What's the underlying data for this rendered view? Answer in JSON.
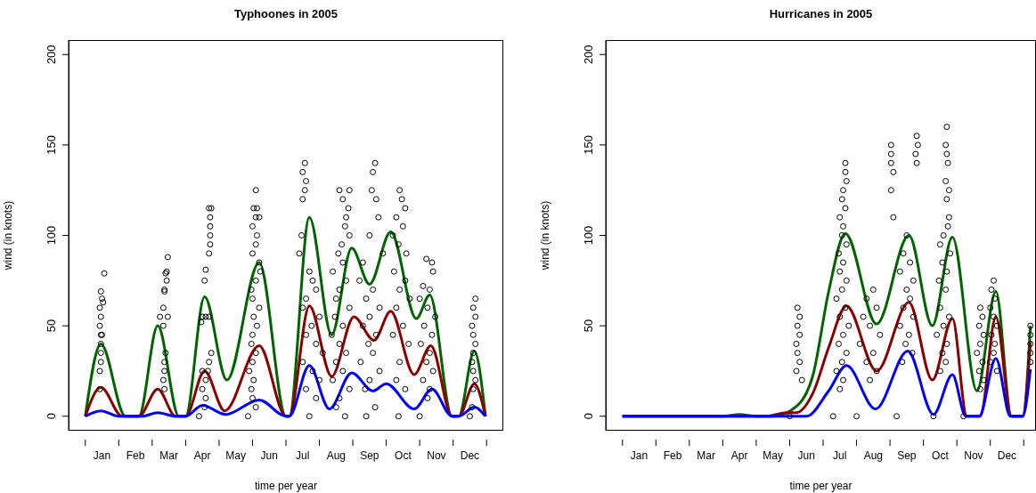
{
  "chart_data": [
    {
      "type": "scatter",
      "title": "Typhoones in 2005",
      "xlabel": "time per year",
      "ylabel": "wind (in knots)",
      "xlim": [
        "2004-12-16",
        "2006-01-16"
      ],
      "ylim": [
        -8,
        208
      ],
      "yticks": [
        0,
        50,
        100,
        150,
        200
      ],
      "xticks": [
        {
          "value": "2005-01-01",
          "label": null
        },
        {
          "value": "2005-01-16",
          "label": "Jan"
        },
        {
          "value": "2005-02-01",
          "label": null
        },
        {
          "value": "2005-02-16",
          "label": "Feb"
        },
        {
          "value": "2005-03-01",
          "label": null
        },
        {
          "value": "2005-03-16",
          "label": "Mar"
        },
        {
          "value": "2005-04-01",
          "label": null
        },
        {
          "value": "2005-04-16",
          "label": "Apr"
        },
        {
          "value": "2005-05-01",
          "label": null
        },
        {
          "value": "2005-05-16",
          "label": "May"
        },
        {
          "value": "2005-06-01",
          "label": null
        },
        {
          "value": "2005-06-16",
          "label": "Jun"
        },
        {
          "value": "2005-07-01",
          "label": null
        },
        {
          "value": "2005-07-16",
          "label": "Jul"
        },
        {
          "value": "2005-08-01",
          "label": null
        },
        {
          "value": "2005-08-16",
          "label": "Aug"
        },
        {
          "value": "2005-09-01",
          "label": null
        },
        {
          "value": "2005-09-16",
          "label": "Sep"
        },
        {
          "value": "2005-10-01",
          "label": null
        },
        {
          "value": "2005-10-16",
          "label": "Oct"
        },
        {
          "value": "2005-11-01",
          "label": null
        },
        {
          "value": "2005-11-16",
          "label": "Nov"
        },
        {
          "value": "2005-12-01",
          "label": null
        },
        {
          "value": "2005-12-16",
          "label": "Dec"
        },
        {
          "value": "2006-01-01",
          "label": null
        }
      ],
      "series": [
        {
          "marker": "circle",
          "color": "#000000",
          "x": [
            "2005-01-18",
            "2005-01-15",
            "2005-01-16",
            "2005-01-17",
            "2005-01-14",
            "2005-01-15",
            "2005-01-14",
            "2005-01-15",
            "2005-01-16",
            "2005-01-15",
            "2005-01-15",
            "2005-01-15",
            "2005-01-14",
            "2005-01-14",
            "2005-03-15",
            "2005-03-14",
            "2005-03-13",
            "2005-03-14",
            "2005-03-12",
            "2005-03-12",
            "2005-03-11",
            "2005-03-08",
            "2005-03-15",
            "2005-03-11",
            "2005-03-13",
            "2005-03-12",
            "2005-03-12",
            "2005-03-11",
            "2005-03-12",
            "2005-04-22",
            "2005-04-24",
            "2005-04-23",
            "2005-04-23",
            "2005-04-23",
            "2005-04-23",
            "2005-04-22",
            "2005-04-19",
            "2005-04-18",
            "2005-04-16",
            "2005-04-19",
            "2005-04-22",
            "2005-04-15",
            "2005-04-24",
            "2005-04-22",
            "2005-04-21",
            "2005-04-16",
            "2005-04-19",
            "2005-04-16",
            "2005-04-19",
            "2005-04-18",
            "2005-04-13",
            "2005-06-04",
            "2005-06-02",
            "2005-06-05",
            "2005-06-04",
            "2005-06-07",
            "2005-06-01",
            "2005-06-05",
            "2005-06-04",
            "2005-06-01",
            "2005-06-07",
            "2005-06-08",
            "2005-06-04",
            "2005-05-30",
            "2005-06-01",
            "2005-06-07",
            "2005-06-02",
            "2005-06-05",
            "2005-06-01",
            "2005-05-30",
            "2005-06-04",
            "2005-06-01",
            "2005-05-28",
            "2005-06-02",
            "2005-05-30",
            "2005-06-01",
            "2005-06-04",
            "2005-05-27",
            "2005-07-18",
            "2005-07-16",
            "2005-07-19",
            "2005-07-18",
            "2005-07-16",
            "2005-07-15",
            "2005-07-13",
            "2005-07-22",
            "2005-07-25",
            "2005-07-28",
            "2005-07-19",
            "2005-07-16",
            "2005-08-01",
            "2005-07-24",
            "2005-07-19",
            "2005-07-28",
            "2005-08-04",
            "2005-07-16",
            "2005-07-25",
            "2005-08-01",
            "2005-07-19",
            "2005-07-28",
            "2005-07-22",
            "2005-08-19",
            "2005-08-28",
            "2005-08-22",
            "2005-08-27",
            "2005-08-25",
            "2005-08-24",
            "2005-08-28",
            "2005-08-21",
            "2005-08-18",
            "2005-08-22",
            "2005-08-13",
            "2005-08-25",
            "2005-08-19",
            "2005-08-16",
            "2005-08-28",
            "2005-08-15",
            "2005-08-22",
            "2005-08-12",
            "2005-08-19",
            "2005-08-25",
            "2005-08-16",
            "2005-08-22",
            "2005-08-13",
            "2005-08-28",
            "2005-08-19",
            "2005-08-16",
            "2005-08-24",
            "2005-09-21",
            "2005-09-19",
            "2005-09-18",
            "2005-09-22",
            "2005-09-24",
            "2005-09-16",
            "2005-09-28",
            "2005-09-10",
            "2005-09-07",
            "2005-09-19",
            "2005-09-13",
            "2005-09-25",
            "2005-09-16",
            "2005-09-10",
            "2005-09-22",
            "2005-09-15",
            "2005-09-19",
            "2005-09-08",
            "2005-09-25",
            "2005-09-16",
            "2005-09-12",
            "2005-09-21",
            "2005-09-13",
            "2005-10-13",
            "2005-10-15",
            "2005-10-18",
            "2005-10-10",
            "2005-10-16",
            "2005-10-07",
            "2005-10-12",
            "2005-10-19",
            "2005-10-08",
            "2005-10-18",
            "2005-10-13",
            "2005-10-22",
            "2005-10-10",
            "2005-10-16",
            "2005-10-07",
            "2005-10-21",
            "2005-10-13",
            "2005-10-10",
            "2005-10-18",
            "2005-10-12",
            "2005-11-07",
            "2005-11-12",
            "2005-11-13",
            "2005-11-04",
            "2005-11-10",
            "2005-11-01",
            "2005-11-08",
            "2005-11-15",
            "2005-11-05",
            "2005-11-12",
            "2005-11-02",
            "2005-11-10",
            "2005-11-07",
            "2005-11-13",
            "2005-11-04",
            "2005-11-10",
            "2005-11-08",
            "2005-11-01",
            "2005-12-21",
            "2005-12-19",
            "2005-12-21",
            "2005-12-18",
            "2005-12-19",
            "2005-12-21",
            "2005-12-19",
            "2005-12-18",
            "2005-12-19",
            "2005-12-21",
            "2005-12-19",
            "2005-12-18",
            "2005-12-16"
          ],
          "values": [
            79,
            69,
            65,
            63,
            60,
            55,
            50,
            45,
            45,
            40,
            35,
            30,
            25,
            15,
            88,
            80,
            79,
            75,
            70,
            69,
            60,
            55,
            55,
            50,
            35,
            30,
            25,
            20,
            15,
            115,
            115,
            110,
            105,
            100,
            95,
            90,
            81,
            75,
            55,
            55,
            55,
            52,
            35,
            30,
            25,
            25,
            20,
            15,
            10,
            5,
            0,
            125,
            115,
            115,
            110,
            110,
            105,
            100,
            95,
            90,
            85,
            80,
            75,
            70,
            65,
            60,
            55,
            50,
            45,
            40,
            35,
            30,
            25,
            20,
            15,
            10,
            5,
            0,
            140,
            135,
            130,
            125,
            120,
            100,
            90,
            80,
            75,
            70,
            65,
            60,
            55,
            50,
            45,
            40,
            35,
            30,
            25,
            20,
            15,
            10,
            0,
            125,
            125,
            120,
            115,
            110,
            105,
            100,
            95,
            90,
            85,
            80,
            75,
            70,
            65,
            60,
            55,
            50,
            45,
            40,
            35,
            30,
            25,
            20,
            15,
            10,
            5,
            0,
            140,
            135,
            125,
            120,
            110,
            100,
            90,
            85,
            75,
            70,
            65,
            60,
            55,
            50,
            45,
            40,
            35,
            30,
            25,
            20,
            15,
            5,
            0,
            125,
            120,
            115,
            110,
            105,
            100,
            95,
            90,
            80,
            75,
            70,
            65,
            60,
            50,
            45,
            40,
            30,
            20,
            15,
            0,
            87,
            85,
            80,
            72,
            70,
            65,
            60,
            55,
            50,
            45,
            40,
            35,
            30,
            25,
            20,
            15,
            10,
            0,
            65,
            60,
            55,
            50,
            45,
            40,
            35,
            30,
            25,
            20,
            15,
            5,
            0
          ]
        },
        {
          "type": "line",
          "marker": "none",
          "color": "#006400",
          "x": [
            "2005-01-01",
            "2005-01-15",
            "2005-02-07",
            "2005-02-19",
            "2005-03-06",
            "2005-03-25",
            "2005-04-01",
            "2005-04-18",
            "2005-05-08",
            "2005-06-07",
            "2005-07-01",
            "2005-07-04",
            "2005-07-22",
            "2005-08-12",
            "2005-08-30",
            "2005-09-16",
            "2005-10-05",
            "2005-10-28",
            "2005-11-10",
            "2005-11-30",
            "2005-12-06",
            "2005-12-20",
            "2005-12-30"
          ],
          "values": [
            0,
            40,
            0,
            0,
            50,
            0,
            0,
            66,
            20,
            85,
            0,
            0,
            110,
            45,
            93,
            73,
            102,
            54,
            67,
            0,
            0,
            36,
            0
          ]
        },
        {
          "type": "line",
          "marker": "none",
          "color": "#8b0000",
          "x": [
            "2005-01-01",
            "2005-01-15",
            "2005-02-04",
            "2005-02-19",
            "2005-03-06",
            "2005-03-22",
            "2005-04-01",
            "2005-04-18",
            "2005-05-06",
            "2005-06-07",
            "2005-07-01",
            "2005-07-04",
            "2005-07-22",
            "2005-08-12",
            "2005-09-02",
            "2005-09-20",
            "2005-10-05",
            "2005-10-26",
            "2005-11-11",
            "2005-11-30",
            "2005-12-06",
            "2005-12-20",
            "2005-12-30"
          ],
          "values": [
            0,
            16,
            0,
            0,
            15,
            0,
            0,
            25,
            3,
            39,
            0,
            0,
            61,
            22,
            55,
            42,
            58,
            23,
            39,
            0,
            0,
            18,
            0
          ]
        },
        {
          "type": "line",
          "marker": "none",
          "color": "#0000ff",
          "x": [
            "2005-01-01",
            "2005-01-15",
            "2005-02-01",
            "2005-02-22",
            "2005-03-06",
            "2005-03-22",
            "2005-04-01",
            "2005-04-16",
            "2005-05-07",
            "2005-06-07",
            "2005-07-01",
            "2005-07-04",
            "2005-07-22",
            "2005-08-10",
            "2005-08-30",
            "2005-09-19",
            "2005-10-01",
            "2005-10-26",
            "2005-11-12",
            "2005-11-30",
            "2005-12-06",
            "2005-12-20",
            "2005-12-30"
          ],
          "values": [
            0,
            3,
            0,
            0,
            2,
            0,
            0,
            6,
            1,
            9,
            0,
            0,
            28,
            4,
            24,
            14,
            18,
            4,
            15,
            0,
            0,
            5,
            0
          ]
        }
      ]
    },
    {
      "type": "scatter",
      "title": "Hurricanes in 2005",
      "xlabel": "time per year",
      "ylabel": "wind (in knots)",
      "xlim": [
        "2004-12-16",
        "2006-01-12"
      ],
      "ylim": [
        -8,
        208
      ],
      "yticks": [
        0,
        50,
        100,
        150,
        200
      ],
      "xticks": [
        {
          "value": "2005-01-01",
          "label": null
        },
        {
          "value": "2005-01-16",
          "label": "Jan"
        },
        {
          "value": "2005-02-01",
          "label": null
        },
        {
          "value": "2005-02-16",
          "label": "Feb"
        },
        {
          "value": "2005-03-01",
          "label": null
        },
        {
          "value": "2005-03-16",
          "label": "Mar"
        },
        {
          "value": "2005-04-01",
          "label": null
        },
        {
          "value": "2005-04-16",
          "label": "Apr"
        },
        {
          "value": "2005-05-01",
          "label": null
        },
        {
          "value": "2005-05-16",
          "label": "May"
        },
        {
          "value": "2005-06-01",
          "label": null
        },
        {
          "value": "2005-06-16",
          "label": "Jun"
        },
        {
          "value": "2005-07-01",
          "label": null
        },
        {
          "value": "2005-07-16",
          "label": "Jul"
        },
        {
          "value": "2005-08-01",
          "label": null
        },
        {
          "value": "2005-08-16",
          "label": "Aug"
        },
        {
          "value": "2005-09-01",
          "label": null
        },
        {
          "value": "2005-09-16",
          "label": "Sep"
        },
        {
          "value": "2005-10-01",
          "label": null
        },
        {
          "value": "2005-10-16",
          "label": "Oct"
        },
        {
          "value": "2005-11-01",
          "label": null
        },
        {
          "value": "2005-11-16",
          "label": "Nov"
        },
        {
          "value": "2005-12-01",
          "label": null
        },
        {
          "value": "2005-12-16",
          "label": "Dec"
        },
        {
          "value": "2006-01-01",
          "label": null
        }
      ],
      "series": [
        {
          "marker": "circle",
          "color": "#000000",
          "x": [
            "2005-06-08",
            "2005-06-10",
            "2005-06-08",
            "2005-06-10",
            "2005-06-07",
            "2005-06-08",
            "2005-06-10",
            "2005-06-07",
            "2005-06-12",
            "2005-06-01",
            "2005-07-21",
            "2005-07-21",
            "2005-07-22",
            "2005-07-19",
            "2005-07-18",
            "2005-07-21",
            "2005-07-16",
            "2005-07-19",
            "2005-07-18",
            "2005-07-22",
            "2005-07-15",
            "2005-07-19",
            "2005-07-16",
            "2005-07-22",
            "2005-07-18",
            "2005-07-13",
            "2005-07-21",
            "2005-07-16",
            "2005-07-24",
            "2005-07-19",
            "2005-07-15",
            "2005-07-22",
            "2005-07-18",
            "2005-07-13",
            "2005-07-19",
            "2005-07-16",
            "2005-07-10",
            "2005-08-16",
            "2005-08-10",
            "2005-08-19",
            "2005-08-07",
            "2005-08-13",
            "2005-08-22",
            "2005-08-04",
            "2005-08-16",
            "2005-08-10",
            "2005-08-19",
            "2005-08-13",
            "2005-08-01",
            "2005-09-25",
            "2005-09-26",
            "2005-09-24",
            "2005-09-25",
            "2005-09-02",
            "2005-09-02",
            "2005-09-02",
            "2005-09-04",
            "2005-09-02",
            "2005-09-04",
            "2005-09-16",
            "2005-09-13",
            "2005-09-19",
            "2005-09-10",
            "2005-09-22",
            "2005-09-16",
            "2005-09-19",
            "2005-09-13",
            "2005-09-22",
            "2005-09-10",
            "2005-09-18",
            "2005-09-15",
            "2005-09-21",
            "2005-09-12",
            "2005-09-07",
            "2005-10-22",
            "2005-10-21",
            "2005-10-22",
            "2005-10-23",
            "2005-10-21",
            "2005-10-24",
            "2005-10-22",
            "2005-10-24",
            "2005-10-23",
            "2005-10-19",
            "2005-10-16",
            "2005-10-25",
            "2005-10-18",
            "2005-10-22",
            "2005-10-15",
            "2005-10-21",
            "2005-10-16",
            "2005-10-24",
            "2005-10-19",
            "2005-10-13",
            "2005-10-22",
            "2005-10-18",
            "2005-10-21",
            "2005-10-16",
            "2005-10-10",
            "2005-11-22",
            "2005-11-24",
            "2005-11-21",
            "2005-11-25",
            "2005-11-22",
            "2005-11-19",
            "2005-11-24",
            "2005-11-21",
            "2005-11-25",
            "2005-11-22",
            "2005-11-07",
            "2005-12-04",
            "2005-12-02",
            "2005-12-05",
            "2005-12-01",
            "2005-12-04",
            "2005-12-07",
            "2005-12-02",
            "2005-12-05",
            "2005-12-04",
            "2005-12-01",
            "2005-12-07",
            "2006-01-07",
            "2006-01-07",
            "2006-01-07",
            "2006-01-07",
            "2006-01-07"
          ],
          "values": [
            60,
            55,
            50,
            45,
            40,
            35,
            30,
            25,
            20,
            0,
            140,
            135,
            130,
            125,
            120,
            115,
            110,
            105,
            100,
            95,
            90,
            85,
            80,
            75,
            70,
            65,
            60,
            55,
            50,
            45,
            40,
            35,
            30,
            25,
            20,
            15,
            0,
            70,
            65,
            60,
            55,
            50,
            45,
            40,
            35,
            30,
            25,
            20,
            0,
            155,
            150,
            145,
            140,
            150,
            145,
            140,
            135,
            125,
            110,
            100,
            90,
            85,
            80,
            75,
            70,
            65,
            60,
            55,
            50,
            45,
            40,
            35,
            30,
            0,
            160,
            150,
            145,
            140,
            130,
            125,
            120,
            110,
            105,
            100,
            95,
            90,
            85,
            80,
            75,
            70,
            60,
            55,
            50,
            45,
            40,
            35,
            30,
            25,
            0,
            60,
            55,
            50,
            45,
            40,
            35,
            30,
            25,
            20,
            15,
            0,
            75,
            70,
            65,
            60,
            55,
            50,
            45,
            40,
            35,
            30,
            25,
            50,
            45,
            40,
            35,
            30
          ]
        },
        {
          "type": "line",
          "marker": "none",
          "color": "#006400",
          "x": [
            "2005-01-01",
            "2005-04-01",
            "2005-04-16",
            "2005-05-01",
            "2005-05-16",
            "2005-06-08",
            "2005-06-22",
            "2005-07-06",
            "2005-07-21",
            "2005-08-19",
            "2005-09-18",
            "2005-10-09",
            "2005-10-27",
            "2005-11-19",
            "2005-12-06",
            "2005-12-20",
            "2005-12-30",
            "2006-01-07"
          ],
          "values": [
            0,
            0,
            1,
            0,
            0,
            6,
            23,
            69,
            101,
            51,
            100,
            50,
            99,
            14,
            69,
            0,
            0,
            50
          ]
        },
        {
          "type": "line",
          "marker": "none",
          "color": "#8b0000",
          "x": [
            "2005-01-01",
            "2005-05-10",
            "2005-05-28",
            "2005-06-07",
            "2005-06-22",
            "2005-07-06",
            "2005-07-22",
            "2005-08-19",
            "2005-09-18",
            "2005-10-09",
            "2005-10-27",
            "2005-11-10",
            "2005-11-22",
            "2005-12-06",
            "2005-12-20",
            "2005-12-30",
            "2006-01-07"
          ],
          "values": [
            0,
            0,
            2,
            2,
            13,
            38,
            61,
            25,
            63,
            20,
            54,
            0,
            0,
            55,
            0,
            0,
            41
          ]
        },
        {
          "type": "line",
          "marker": "none",
          "color": "#0000ff",
          "x": [
            "2005-01-01",
            "2005-06-16",
            "2005-07-06",
            "2005-07-22",
            "2005-08-18",
            "2005-09-17",
            "2005-10-10",
            "2005-10-27",
            "2005-11-09",
            "2005-11-21",
            "2005-12-06",
            "2005-12-19",
            "2005-12-30",
            "2006-01-07"
          ],
          "values": [
            0,
            0,
            14,
            28,
            4,
            36,
            1,
            23,
            0,
            0,
            32,
            0,
            0,
            26
          ]
        }
      ]
    }
  ]
}
